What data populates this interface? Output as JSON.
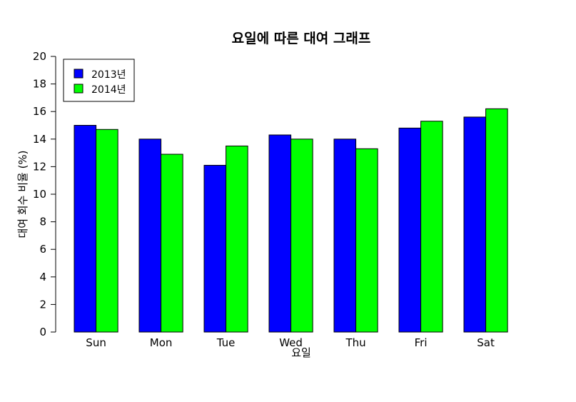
{
  "chart_data": {
    "type": "bar",
    "title": "요일에 따른 대여 그래프",
    "xlabel": "요일",
    "ylabel": "대여 회수 비율 (%)",
    "categories": [
      "Sun",
      "Mon",
      "Tue",
      "Wed",
      "Thu",
      "Fri",
      "Sat"
    ],
    "series": [
      {
        "name": "2013년",
        "color": "#0000ff",
        "values": [
          15.0,
          14.0,
          12.1,
          14.3,
          14.0,
          14.8,
          15.6
        ]
      },
      {
        "name": "2014년",
        "color": "#00ff00",
        "values": [
          14.7,
          12.9,
          13.5,
          14.0,
          13.3,
          15.3,
          16.2
        ]
      }
    ],
    "ylim": [
      0,
      20
    ],
    "yticks": [
      "0",
      "2",
      "4",
      "6",
      "8",
      "10",
      "12",
      "14",
      "16",
      "18",
      "20"
    ],
    "legend_position": "top-left",
    "grid": false
  }
}
